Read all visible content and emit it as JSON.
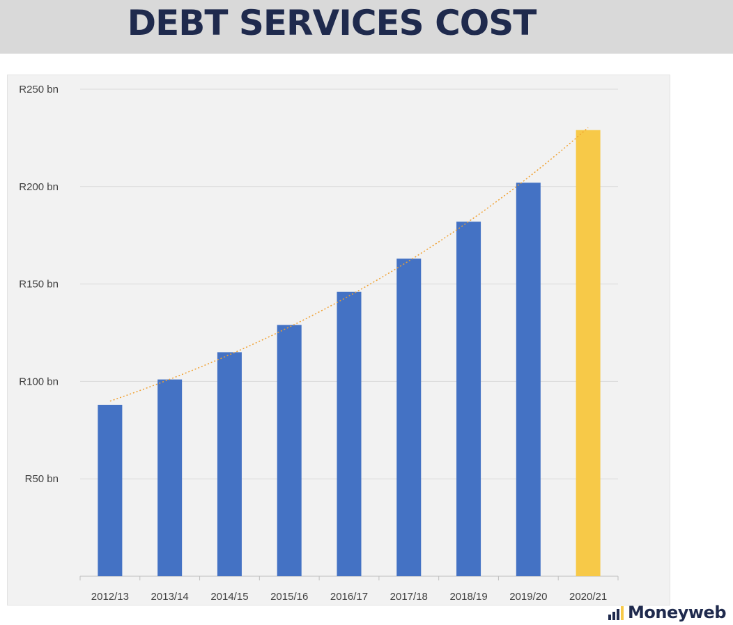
{
  "header": {
    "title": "DEBT SERVICES COST"
  },
  "brand": {
    "name": "Moneyweb",
    "logo_icon": "bar-chart-logo-icon"
  },
  "colors": {
    "bar": "#4472c4",
    "highlight_bar": "#f7c948",
    "trendline": "#f0a030",
    "grid": "#d9d9d9",
    "title": "#1f2a4d",
    "axis_text": "#404040"
  },
  "chart_data": {
    "type": "bar",
    "title": "DEBT SERVICES COST",
    "xlabel": "",
    "ylabel": "",
    "categories": [
      "2012/13",
      "2013/14",
      "2014/15",
      "2015/16",
      "2016/17",
      "2017/18",
      "2018/19",
      "2019/20",
      "2020/21"
    ],
    "values": [
      88,
      101,
      115,
      129,
      146,
      163,
      182,
      202,
      229
    ],
    "ylim": [
      0,
      250
    ],
    "yticks": [
      50,
      100,
      150,
      200,
      250
    ],
    "ytick_labels": [
      "R50 bn",
      "R100 bn",
      "R150 bn",
      "R200 bn",
      "R250 bn"
    ],
    "highlight_category": "2020/21",
    "trendline": "exponential (dotted)",
    "grid": true,
    "legend": "none"
  }
}
